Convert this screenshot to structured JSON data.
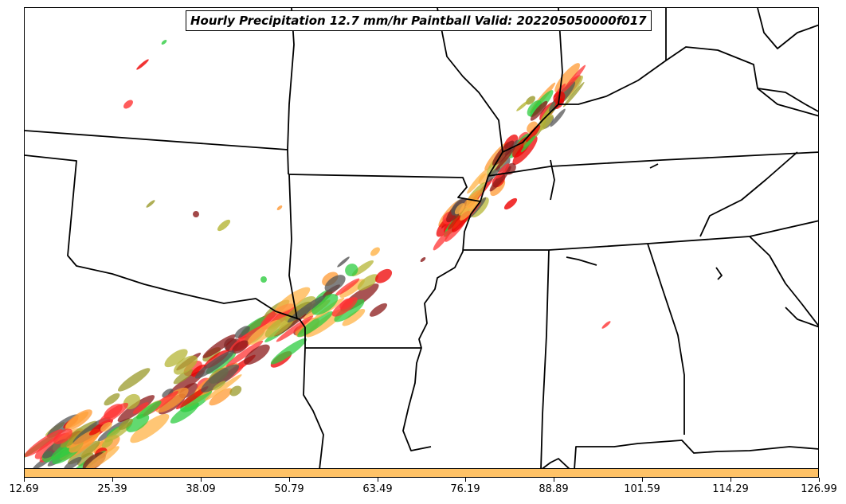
{
  "title": "Hourly Precipitation 12.7 mm/hr Paintball Valid: 202205050000f017",
  "colorbar": {
    "color": "#ffc266",
    "ticks": [
      "12.69",
      "25.39",
      "38.09",
      "50.79",
      "63.49",
      "76.19",
      "88.89",
      "101.59",
      "114.29",
      "126.99"
    ]
  },
  "paintball_colors": [
    "#2ecc40",
    "#ff3333",
    "#ee0000",
    "#8b1a1a",
    "#9a9a2a",
    "#b5b535",
    "#ff9933",
    "#ffb347",
    "#555555"
  ],
  "map": {
    "line_color": "#000000",
    "boundaries": "US state borders and coastline"
  }
}
